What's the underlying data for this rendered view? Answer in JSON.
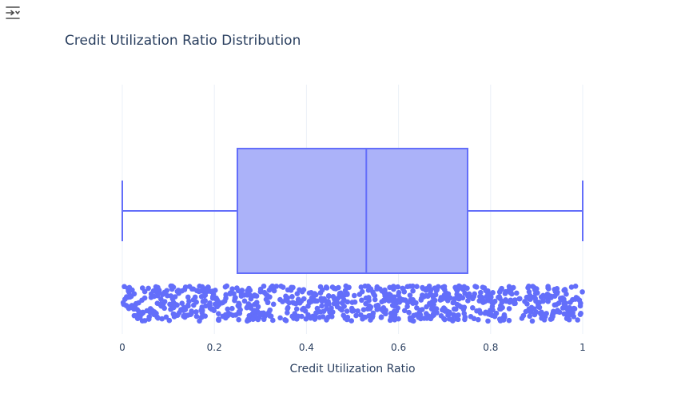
{
  "toolbar": {
    "menu_icon": "menu-toggle-icon"
  },
  "chart_data": {
    "type": "box",
    "title": "Credit Utilization Ratio Distribution",
    "xlabel": "Credit Utilization Ratio",
    "ylabel": "",
    "xlim": [
      0,
      1
    ],
    "xticks": [
      0,
      0.2,
      0.4,
      0.6,
      0.8,
      1
    ],
    "xtick_labels": [
      "0",
      "0.2",
      "0.4",
      "0.6",
      "0.8",
      "1"
    ],
    "grid": true,
    "orientation": "horizontal",
    "box": {
      "min": 0.0,
      "q1": 0.25,
      "median": 0.53,
      "q3": 0.75,
      "max": 1.0
    },
    "points": "all",
    "point_count": 900,
    "colors": {
      "box_line": "#636efa",
      "box_fill": "#abb2f9",
      "points": "#636efa",
      "grid": "#ebf0f8",
      "text": "#2a3f5f"
    }
  }
}
